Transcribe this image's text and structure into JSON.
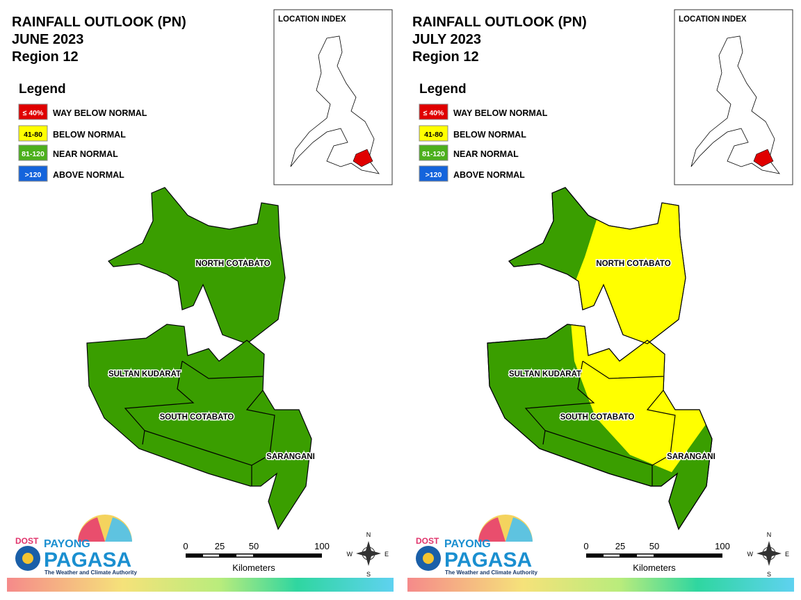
{
  "panels": [
    {
      "title": [
        "RAINFALL OUTLOOK (PN)",
        "JUNE 2023",
        "Region 12"
      ],
      "legend": {
        "title": "Legend",
        "items": [
          {
            "range": "≤ 40%",
            "label": "WAY BELOW NORMAL"
          },
          {
            "range": "41-80",
            "label": "BELOW NORMAL"
          },
          {
            "range": "81-120",
            "label": "NEAR NORMAL"
          },
          {
            "range": ">120",
            "label": "ABOVE NORMAL"
          }
        ]
      },
      "location_index": "LOCATION INDEX",
      "provinces": [
        "NORTH COTABATO",
        "SULTAN KUDARAT",
        "SOUTH COTABATO",
        "SARANGANI"
      ],
      "scale": {
        "ticks": [
          0,
          25,
          50,
          100
        ],
        "unit": "Kilometers"
      },
      "compass": [
        "N",
        "E",
        "S",
        "W"
      ],
      "logo": {
        "agency": "DOST",
        "brand": "PAYONG",
        "name": "PAGASA",
        "tagline": "The Weather and Climate Authority"
      }
    },
    {
      "title": [
        "RAINFALL OUTLOOK (PN)",
        "JULY 2023",
        "Region 12"
      ],
      "legend": {
        "title": "Legend",
        "items": [
          {
            "range": "≤ 40%",
            "label": "WAY BELOW NORMAL"
          },
          {
            "range": "41-80",
            "label": "BELOW NORMAL"
          },
          {
            "range": "81-120",
            "label": "NEAR NORMAL"
          },
          {
            "range": ">120",
            "label": "ABOVE NORMAL"
          }
        ]
      },
      "location_index": "LOCATION INDEX",
      "provinces": [
        "NORTH COTABATO",
        "SULTAN KUDARAT",
        "SOUTH COTABATO",
        "SARANGANI"
      ],
      "scale": {
        "ticks": [
          0,
          25,
          50,
          100
        ],
        "unit": "Kilometers"
      },
      "compass": [
        "N",
        "E",
        "S",
        "W"
      ],
      "logo": {
        "agency": "DOST",
        "brand": "PAYONG",
        "name": "PAGASA",
        "tagline": "The Weather and Climate Authority"
      }
    }
  ]
}
